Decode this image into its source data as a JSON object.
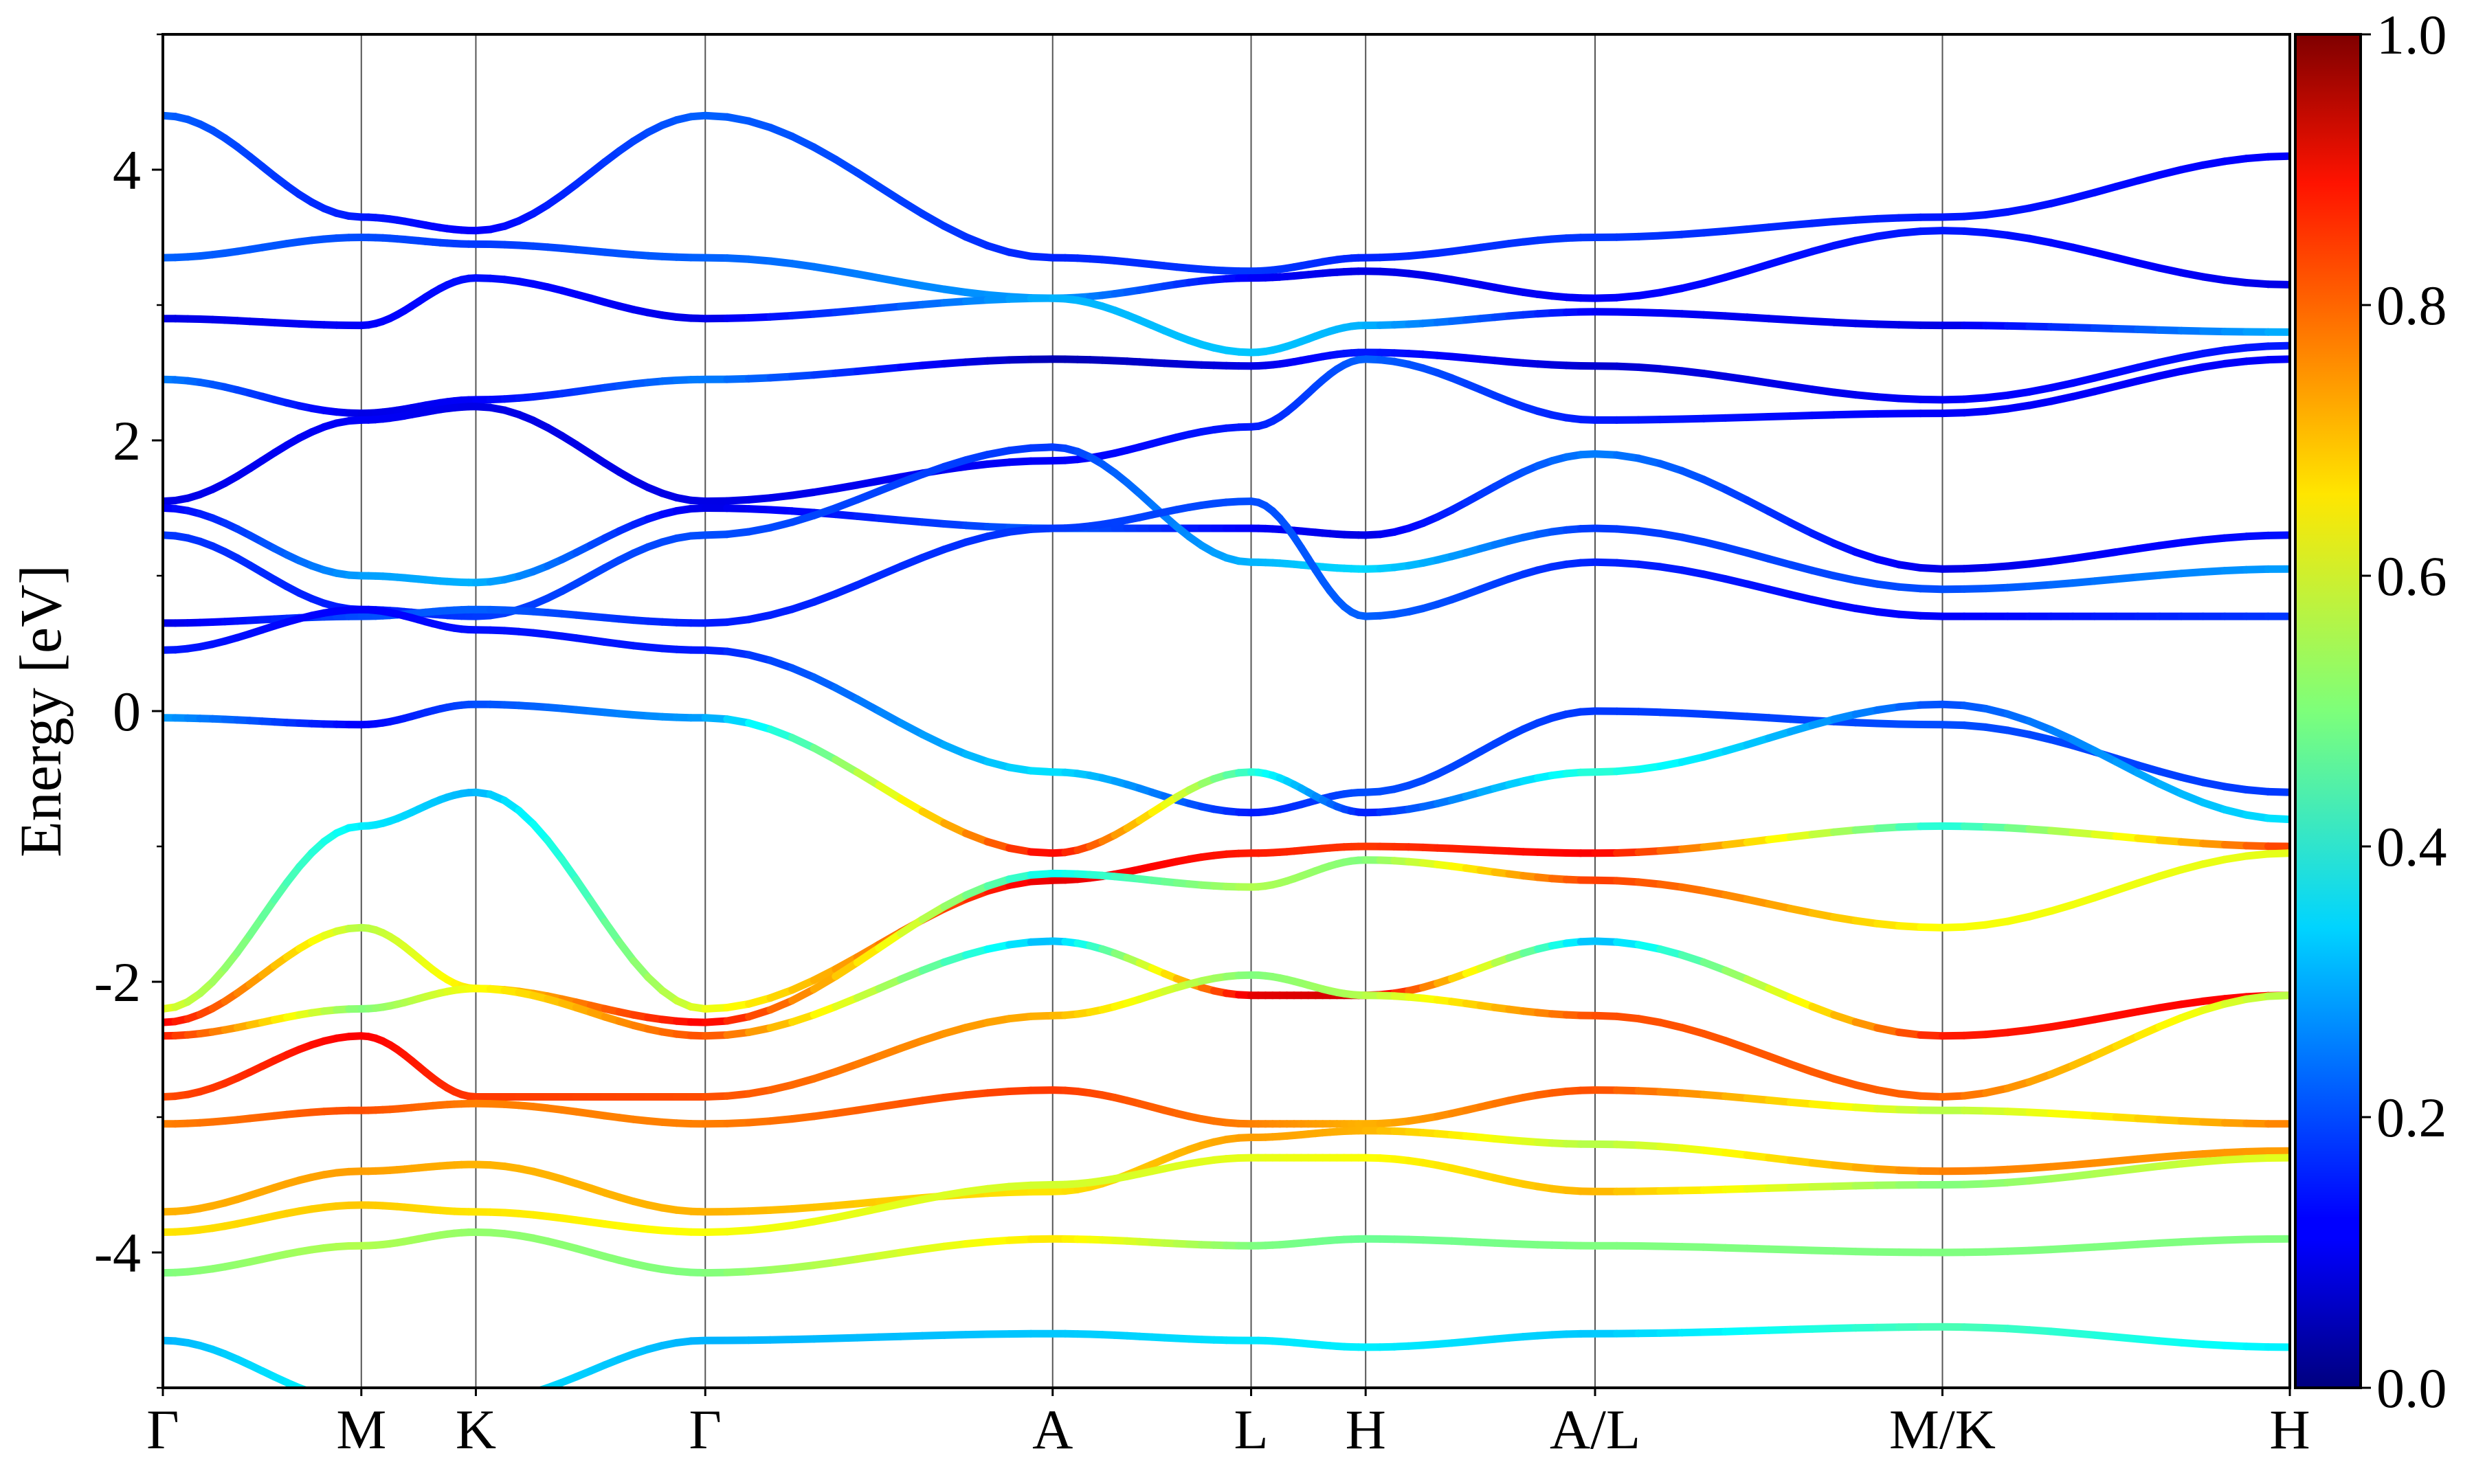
{
  "chart_data": {
    "type": "line",
    "title": "",
    "xlabel": "",
    "ylabel": "Energy [eV]",
    "ylim": [
      -5,
      5
    ],
    "yticks": [
      4,
      2,
      0,
      -2,
      -4
    ],
    "ytick_labels": [
      "4",
      "2",
      "0",
      "-2",
      "-4"
    ],
    "k_points": [
      {
        "label": "Γ",
        "k": 0.0
      },
      {
        "label": "M",
        "k": 0.577
      },
      {
        "label": "K",
        "k": 0.91
      },
      {
        "label": "Γ",
        "k": 1.577
      },
      {
        "label": "A",
        "k": 2.587
      },
      {
        "label": "L",
        "k": 3.164
      },
      {
        "label": "H",
        "k": 3.497
      },
      {
        "label": "A/L",
        "k": 4.164
      },
      {
        "label": "M/K",
        "k": 5.174
      },
      {
        "label": "H",
        "k": 6.184
      }
    ],
    "colorbar": {
      "colormap": "jet",
      "min": 0.0,
      "max": 1.0,
      "ticks": [
        0.0,
        0.2,
        0.4,
        0.6,
        0.8,
        1.0
      ],
      "tick_labels": [
        "0.0",
        "0.2",
        "0.4",
        "0.6",
        "0.8",
        "1.0"
      ]
    },
    "grid": "vertical lines at high-symmetry points",
    "series": [
      {
        "y": [
          4.4,
          3.65,
          3.55,
          4.4,
          3.35,
          3.25,
          3.35,
          3.5,
          3.65,
          4.1
        ],
        "w": [
          0.22,
          0.15,
          0.12,
          0.22,
          0.16,
          0.18,
          0.16,
          0.18,
          0.15,
          0.12
        ]
      },
      {
        "y": [
          3.35,
          3.5,
          3.45,
          3.35,
          3.05,
          3.2,
          3.25,
          3.05,
          3.55,
          3.15
        ],
        "w": [
          0.22,
          0.2,
          0.18,
          0.22,
          0.28,
          0.12,
          0.1,
          0.12,
          0.15,
          0.1
        ]
      },
      {
        "y": [
          2.9,
          2.85,
          3.2,
          2.9,
          3.05,
          2.65,
          2.85,
          2.95,
          2.85,
          2.8
        ],
        "w": [
          0.1,
          0.12,
          0.14,
          0.1,
          0.3,
          0.32,
          0.3,
          0.12,
          0.1,
          0.3
        ]
      },
      {
        "y": [
          2.45,
          2.2,
          2.3,
          2.45,
          2.6,
          2.55,
          2.65,
          2.55,
          2.3,
          2.7
        ],
        "w": [
          0.25,
          0.1,
          0.12,
          0.25,
          0.05,
          0.1,
          0.15,
          0.08,
          0.12,
          0.15
        ]
      },
      {
        "y": [
          1.55,
          2.15,
          2.25,
          1.55,
          1.85,
          2.1,
          2.6,
          2.15,
          2.2,
          2.6
        ],
        "w": [
          0.1,
          0.12,
          0.1,
          0.1,
          0.12,
          0.15,
          0.22,
          0.15,
          0.12,
          0.12
        ]
      },
      {
        "y": [
          1.5,
          1.0,
          0.95,
          1.5,
          1.35,
          1.35,
          1.3,
          1.9,
          1.05,
          1.3
        ],
        "w": [
          0.12,
          0.28,
          0.3,
          0.1,
          0.22,
          0.12,
          0.1,
          0.25,
          0.1,
          0.14
        ]
      },
      {
        "y": [
          1.3,
          0.75,
          0.7,
          1.3,
          1.95,
          1.1,
          1.05,
          1.35,
          0.9,
          1.05
        ],
        "w": [
          0.18,
          0.15,
          0.18,
          0.2,
          0.18,
          0.3,
          0.34,
          0.18,
          0.2,
          0.28
        ]
      },
      {
        "y": [
          0.65,
          0.7,
          0.75,
          0.65,
          1.35,
          1.55,
          0.7,
          1.1,
          0.7,
          0.7
        ],
        "w": [
          0.1,
          0.2,
          0.22,
          0.15,
          0.18,
          0.2,
          0.22,
          0.16,
          0.12,
          0.18
        ]
      },
      {
        "y": [
          0.45,
          0.75,
          0.6,
          0.45,
          -0.45,
          -0.75,
          -0.6,
          0.0,
          -0.1,
          -0.6
        ],
        "w": [
          0.15,
          0.12,
          0.14,
          0.15,
          0.35,
          0.15,
          0.2,
          0.18,
          0.2,
          0.18
        ]
      },
      {
        "y": [
          -0.05,
          -0.1,
          0.05,
          -0.05,
          -1.05,
          -0.45,
          -0.75,
          -0.45,
          0.05,
          -0.8
        ],
        "w": [
          0.28,
          0.12,
          0.2,
          0.28,
          0.88,
          0.42,
          0.15,
          0.42,
          0.2,
          0.35
        ]
      },
      {
        "y": [
          -2.2,
          -0.85,
          -0.6,
          -2.2,
          -1.25,
          -1.05,
          -1.0,
          -1.05,
          -0.85,
          -1.0
        ],
        "w": [
          0.6,
          0.36,
          0.3,
          0.6,
          0.9,
          0.85,
          0.82,
          0.88,
          0.4,
          0.82
        ]
      },
      {
        "y": [
          -2.3,
          -1.6,
          -2.05,
          -2.3,
          -1.2,
          -1.3,
          -1.1,
          -1.25,
          -1.6,
          -1.05
        ],
        "w": [
          0.88,
          0.55,
          0.65,
          0.88,
          0.38,
          0.55,
          0.5,
          0.82,
          0.62,
          0.6
        ]
      },
      {
        "y": [
          -2.4,
          -2.2,
          -2.05,
          -2.4,
          -1.7,
          -2.1,
          -2.1,
          -1.7,
          -2.4,
          -2.1
        ],
        "w": [
          0.85,
          0.5,
          0.62,
          0.8,
          0.3,
          0.9,
          0.92,
          0.3,
          0.85,
          0.88
        ]
      },
      {
        "y": [
          -2.85,
          -2.4,
          -2.85,
          -2.85,
          -2.25,
          -1.95,
          -2.1,
          -2.25,
          -2.85,
          -2.1
        ],
        "w": [
          0.8,
          0.88,
          0.82,
          0.8,
          0.7,
          0.5,
          0.55,
          0.8,
          0.78,
          0.55
        ]
      },
      {
        "y": [
          -3.05,
          -2.95,
          -2.9,
          -3.05,
          -2.8,
          -3.05,
          -3.05,
          -2.8,
          -2.95,
          -3.05
        ],
        "w": [
          0.75,
          0.8,
          0.75,
          0.75,
          0.82,
          0.75,
          0.7,
          0.8,
          0.55,
          0.75
        ]
      },
      {
        "y": [
          -3.7,
          -3.4,
          -3.35,
          -3.7,
          -3.55,
          -3.15,
          -3.1,
          -3.2,
          -3.4,
          -3.25
        ],
        "w": [
          0.7,
          0.72,
          0.7,
          0.7,
          0.65,
          0.72,
          0.7,
          0.55,
          0.75,
          0.72
        ]
      },
      {
        "y": [
          -3.85,
          -3.65,
          -3.7,
          -3.85,
          -3.5,
          -3.3,
          -3.3,
          -3.55,
          -3.5,
          -3.3
        ],
        "w": [
          0.65,
          0.68,
          0.65,
          0.62,
          0.58,
          0.6,
          0.62,
          0.7,
          0.5,
          0.6
        ]
      },
      {
        "y": [
          -4.15,
          -3.95,
          -3.85,
          -4.15,
          -3.9,
          -3.95,
          -3.9,
          -3.95,
          -4.0,
          -3.9
        ],
        "w": [
          0.5,
          0.55,
          0.52,
          0.5,
          0.65,
          0.5,
          0.48,
          0.5,
          0.5,
          0.5
        ]
      },
      {
        "y": [
          -4.65,
          -5.1,
          -5.1,
          -4.65,
          -4.6,
          -4.65,
          -4.7,
          -4.6,
          -4.55,
          -4.7
        ],
        "w": [
          0.3,
          0.38,
          0.35,
          0.3,
          0.32,
          0.35,
          0.36,
          0.32,
          0.45,
          0.36
        ]
      }
    ]
  }
}
